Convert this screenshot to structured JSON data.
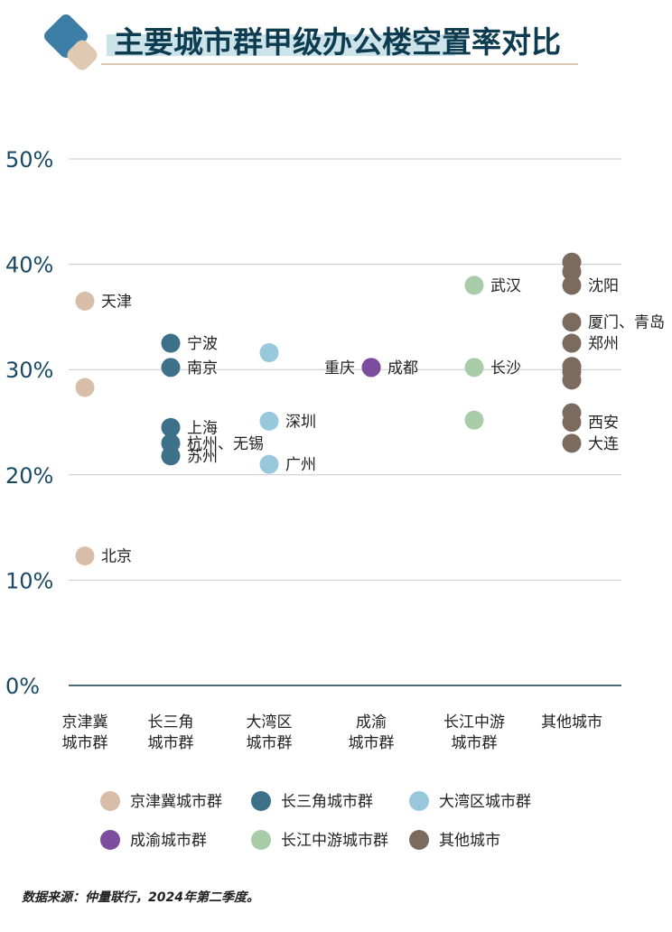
{
  "title": "主要城市群甲级办公楼空置率对比",
  "source": "数据来源：仲量联行，2024年第二季度。",
  "colors": {
    "京津冀城市群": "#d8bea9",
    "长三角城市群": "#3d7189",
    "大湾区城市群": "#98c8db",
    "成渝城市群": "#7c4d9e",
    "长江中游城市群": "#a7cca7",
    "其他城市": "#7b6a5e",
    "title_logo_dark": "#3d7ea6",
    "title_logo_light": "#dfc9b2",
    "title_bg": "#cde3ea",
    "title_text": "#0d3b4f",
    "axis_text": "#1a4a63",
    "grid": "#c9c9c9",
    "baseline": "#4d6b78"
  },
  "chart_data": {
    "type": "scatter",
    "title": "主要城市群甲级办公楼空置率对比",
    "ylim": [
      0,
      50
    ],
    "yticks": [
      "0%",
      "10%",
      "20%",
      "30%",
      "40%",
      "50%"
    ],
    "categories": [
      "京津冀\n城市群",
      "长三角\n城市群",
      "大湾区\n城市群",
      "成渝\n城市群",
      "长江中游\n城市群",
      "其他城市"
    ],
    "series": [
      {
        "name": "京津冀城市群",
        "points": [
          {
            "cat": 0,
            "y": 36.5,
            "label": "天津"
          },
          {
            "cat": 0,
            "y": 28.3,
            "label": ""
          },
          {
            "cat": 0,
            "y": 12.3,
            "label": "北京"
          }
        ]
      },
      {
        "name": "长三角城市群",
        "points": [
          {
            "cat": 1,
            "y": 32.5,
            "label": "宁波"
          },
          {
            "cat": 1,
            "y": 30.2,
            "label": "南京"
          },
          {
            "cat": 1,
            "y": 24.5,
            "label": "上海"
          },
          {
            "cat": 1,
            "y": 23.0,
            "label": "杭州、无锡"
          },
          {
            "cat": 1,
            "y": 21.8,
            "label": "苏州"
          }
        ]
      },
      {
        "name": "大湾区城市群",
        "points": [
          {
            "cat": 2,
            "y": 31.6,
            "label": ""
          },
          {
            "cat": 2,
            "y": 25.1,
            "label": "深圳"
          },
          {
            "cat": 2,
            "y": 21.0,
            "label": "广州"
          }
        ]
      },
      {
        "name": "成渝城市群",
        "points": [
          {
            "cat": 3,
            "y": 30.2,
            "label": "重庆",
            "label_side": "left"
          },
          {
            "cat": 3,
            "y": 30.2,
            "label": "成都"
          }
        ]
      },
      {
        "name": "长江中游城市群",
        "points": [
          {
            "cat": 4,
            "y": 38.0,
            "label": "武汉"
          },
          {
            "cat": 4,
            "y": 30.2,
            "label": "长沙"
          },
          {
            "cat": 4,
            "y": 25.2,
            "label": ""
          }
        ]
      },
      {
        "name": "其他城市",
        "points": [
          {
            "cat": 5,
            "y": 40.2,
            "label": ""
          },
          {
            "cat": 5,
            "y": 39.3,
            "label": ""
          },
          {
            "cat": 5,
            "y": 38.0,
            "label": "沈阳"
          },
          {
            "cat": 5,
            "y": 34.5,
            "label": "厦门、青岛"
          },
          {
            "cat": 5,
            "y": 32.5,
            "label": "郑州"
          },
          {
            "cat": 5,
            "y": 30.3,
            "label": ""
          },
          {
            "cat": 5,
            "y": 29.8,
            "label": ""
          },
          {
            "cat": 5,
            "y": 29.0,
            "label": ""
          },
          {
            "cat": 5,
            "y": 25.9,
            "label": ""
          },
          {
            "cat": 5,
            "y": 25.0,
            "label": "西安"
          },
          {
            "cat": 5,
            "y": 23.0,
            "label": "大连"
          }
        ]
      }
    ],
    "legend": [
      "京津冀城市群",
      "长三角城市群",
      "大湾区城市群",
      "成渝城市群",
      "长江中游城市群",
      "其他城市"
    ],
    "legend_position": "bottom",
    "grid": true
  }
}
